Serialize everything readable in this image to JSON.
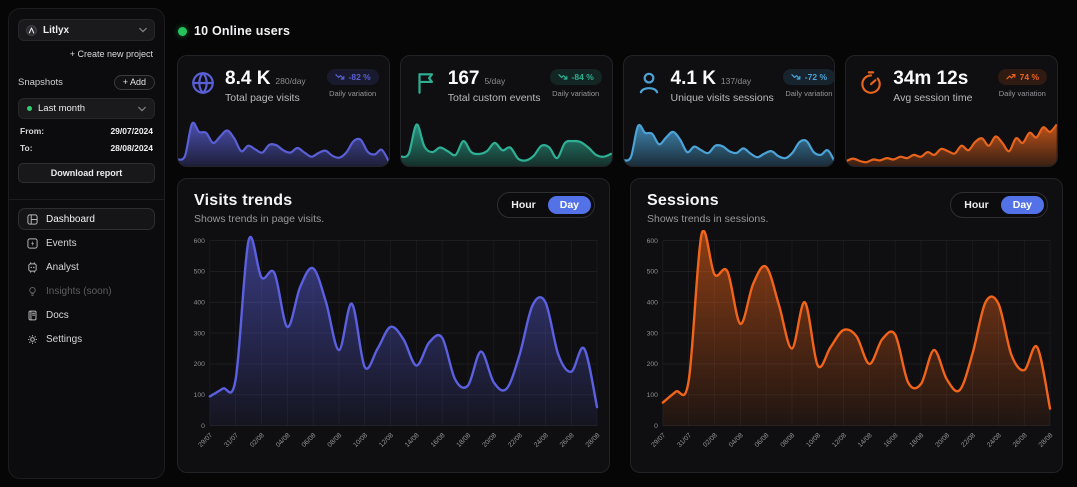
{
  "sidebar": {
    "project_name": "Litlyx",
    "create_new_project": "+ Create new project",
    "snapshots_label": "Snapshots",
    "add_button": "+ Add",
    "snapshot_selected": "Last month",
    "from_label": "From:",
    "from_value": "29/07/2024",
    "to_label": "To:",
    "to_value": "28/08/2024",
    "download_report": "Download report",
    "nav": [
      {
        "label": "Dashboard",
        "active": true
      },
      {
        "label": "Events"
      },
      {
        "label": "Analyst"
      },
      {
        "label": "Insights (soon)",
        "disabled": true
      },
      {
        "label": "Docs"
      },
      {
        "label": "Settings"
      }
    ]
  },
  "header": {
    "online_users": "10 Online users"
  },
  "colors": {
    "online_green": "#23c45e",
    "toggle_selected_blue": "#5472e8",
    "visits_indigo": "#5a5fd6",
    "events_teal": "#2eb094",
    "sessions_cyan": "#4ba3d8",
    "time_orange": "#e8641c"
  },
  "stat_cards": [
    {
      "title": "Total page visits",
      "value": "8.4 K",
      "per_day": "280/day",
      "badge": "-82 %",
      "trend": "down",
      "badge_note": "Daily variation",
      "accent": "#5a5fd6",
      "sparkline": [
        12,
        20,
        90,
        72,
        70,
        48,
        62,
        75,
        58,
        30,
        42,
        34,
        27,
        44,
        43,
        32,
        27,
        37,
        27,
        18,
        26,
        31,
        20,
        16,
        28,
        52,
        55,
        29,
        23,
        33,
        8
      ]
    },
    {
      "title": "Total custom events",
      "value": "167",
      "per_day": "5/day",
      "badge": "-84 %",
      "trend": "down",
      "badge_note": "Daily variation",
      "accent": "#2eb094",
      "sparkline": [
        18,
        25,
        88,
        40,
        28,
        38,
        30,
        22,
        52,
        28,
        24,
        30,
        48,
        32,
        38,
        14,
        10,
        20,
        42,
        38,
        15,
        48,
        52,
        50,
        38,
        22,
        18,
        25
      ]
    },
    {
      "title": "Unique visits sessions",
      "value": "4.1 K",
      "per_day": "137/day",
      "badge": "-72 %",
      "trend": "down",
      "badge_note": "Daily variation",
      "accent": "#4ba3d8",
      "sparkline": [
        10,
        18,
        85,
        70,
        68,
        45,
        60,
        72,
        55,
        28,
        40,
        32,
        26,
        42,
        41,
        30,
        26,
        36,
        25,
        17,
        25,
        30,
        19,
        15,
        27,
        50,
        52,
        28,
        22,
        32,
        7
      ]
    },
    {
      "title": "Avg session time",
      "value": "34m 12s",
      "per_day": "",
      "badge": "74 %",
      "trend": "up",
      "badge_note": "Daily variation",
      "accent": "#e8641c",
      "sparkline": [
        8,
        14,
        9,
        6,
        12,
        10,
        15,
        12,
        18,
        15,
        22,
        18,
        28,
        22,
        35,
        30,
        25,
        42,
        32,
        50,
        58,
        42,
        62,
        48,
        30,
        58,
        48,
        70,
        60,
        82,
        72,
        88
      ]
    }
  ],
  "chart_data": [
    {
      "type": "area",
      "title": "Visits trends",
      "subtitle": "Shows trends in page visits.",
      "toggle": {
        "options": [
          "Hour",
          "Day"
        ],
        "selected": "Day"
      },
      "color": "#5b60e0",
      "categories": [
        "29/07",
        "31/07",
        "02/08",
        "04/08",
        "06/08",
        "08/08",
        "10/08",
        "12/08",
        "14/08",
        "16/08",
        "18/08",
        "20/08",
        "22/08",
        "24/08",
        "26/08",
        "28/08"
      ],
      "values": [
        95,
        120,
        150,
        600,
        480,
        495,
        320,
        450,
        510,
        400,
        245,
        395,
        190,
        250,
        320,
        280,
        195,
        270,
        285,
        150,
        130,
        240,
        140,
        120,
        230,
        390,
        400,
        230,
        175,
        250,
        60
      ],
      "ylim": [
        0,
        600
      ],
      "y_ticks": [
        0,
        100,
        200,
        300,
        400,
        500,
        600
      ],
      "grid": true,
      "legend": "none"
    },
    {
      "type": "area",
      "title": "Sessions",
      "subtitle": "Shows trends in sessions.",
      "toggle": {
        "options": [
          "Hour",
          "Day"
        ],
        "selected": "Day"
      },
      "color": "#f26419",
      "categories": [
        "29/07",
        "31/07",
        "02/08",
        "04/08",
        "06/08",
        "08/08",
        "10/08",
        "12/08",
        "14/08",
        "16/08",
        "18/08",
        "20/08",
        "22/08",
        "24/08",
        "26/08",
        "28/08"
      ],
      "values": [
        75,
        110,
        145,
        620,
        490,
        500,
        330,
        460,
        515,
        390,
        250,
        400,
        195,
        255,
        310,
        290,
        200,
        280,
        295,
        140,
        135,
        245,
        150,
        115,
        235,
        400,
        395,
        230,
        180,
        255,
        55
      ],
      "ylim": [
        0,
        600
      ],
      "y_ticks": [
        0,
        100,
        200,
        300,
        400,
        500,
        600
      ],
      "grid": true,
      "legend": "none"
    }
  ]
}
